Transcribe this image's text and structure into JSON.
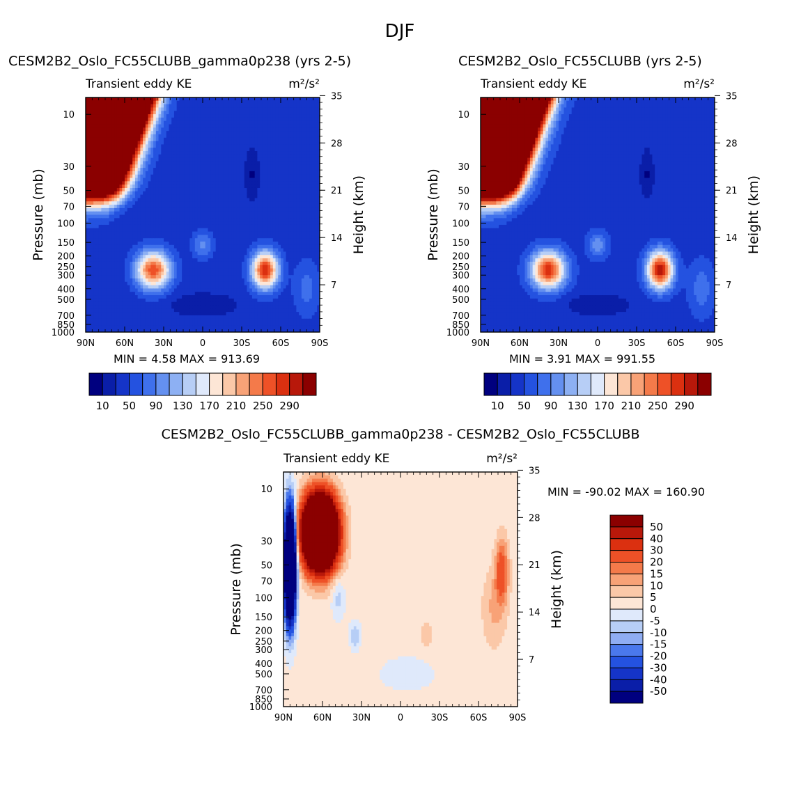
{
  "figure_title": "DJF",
  "chart_data": [
    {
      "type": "heatmap",
      "title": "CESM2B2_Oslo_FC55CLUBB_gamma0p238 (yrs 2-5)",
      "subtitle_left": "Transient eddy KE",
      "units_label": "m²/s²",
      "ylabel": "Pressure (mb)",
      "ylabel_right": "Height (km)",
      "x_ticks": [
        "90N",
        "60N",
        "30N",
        "0",
        "30S",
        "60S",
        "90S"
      ],
      "y_ticks": [
        "10",
        "30",
        "50",
        "70",
        "100",
        "150",
        "200",
        "250",
        "300",
        "400",
        "500",
        "700",
        "850",
        "1000"
      ],
      "y_right_ticks": [
        "35",
        "28",
        "21",
        "14",
        "7"
      ],
      "min_label": "MIN =",
      "min_value": "4.58",
      "max_label": "MAX =",
      "max_value": "913.69",
      "colorbar_labels": [
        "10",
        "50",
        "90",
        "130",
        "170",
        "210",
        "250",
        "290"
      ],
      "field": "control",
      "scale": 1.0
    },
    {
      "type": "heatmap",
      "title": "CESM2B2_Oslo_FC55CLUBB (yrs 2-5)",
      "subtitle_left": "Transient eddy KE",
      "units_label": "m²/s²",
      "ylabel": "Pressure (mb)",
      "ylabel_right": "Height (km)",
      "x_ticks": [
        "90N",
        "60N",
        "30N",
        "0",
        "30S",
        "60S",
        "90S"
      ],
      "y_ticks": [
        "10",
        "30",
        "50",
        "70",
        "100",
        "150",
        "200",
        "250",
        "300",
        "400",
        "500",
        "700",
        "850",
        "1000"
      ],
      "y_right_ticks": [
        "35",
        "28",
        "21",
        "14",
        "7"
      ],
      "min_label": "MIN =",
      "min_value": "3.91",
      "max_label": "MAX =",
      "max_value": "991.55",
      "colorbar_labels": [
        "10",
        "50",
        "90",
        "130",
        "170",
        "210",
        "250",
        "290"
      ],
      "field": "control",
      "scale": 1.05
    },
    {
      "type": "heatmap",
      "title": "CESM2B2_Oslo_FC55CLUBB_gamma0p238 - CESM2B2_Oslo_FC55CLUBB",
      "subtitle_left": "Transient eddy KE",
      "units_label": "m²/s²",
      "ylabel": "Pressure (mb)",
      "ylabel_right": "Height (km)",
      "x_ticks": [
        "90N",
        "60N",
        "30N",
        "0",
        "30S",
        "60S",
        "90S"
      ],
      "y_ticks": [
        "10",
        "30",
        "50",
        "70",
        "100",
        "150",
        "200",
        "250",
        "300",
        "400",
        "500",
        "700",
        "850",
        "1000"
      ],
      "y_right_ticks": [
        "35",
        "28",
        "21",
        "14",
        "7"
      ],
      "min_label": "MIN =",
      "min_value": "-90.02",
      "max_label": "MAX =",
      "max_value": "160.90",
      "colorbar_labels": [
        "50",
        "40",
        "30",
        "20",
        "15",
        "10",
        "5",
        "0",
        "-5",
        "-10",
        "-15",
        "-20",
        "-30",
        "-40",
        "-50"
      ],
      "field": "difference",
      "scale": 1.0
    }
  ],
  "colorscales": {
    "control_colors": [
      "#00007f",
      "#0a1ea8",
      "#1534c8",
      "#2452e0",
      "#3f70ec",
      "#6490f0",
      "#8db0f3",
      "#b7cef6",
      "#dfe9fb",
      "#fde6d6",
      "#fbc8a8",
      "#f8a277",
      "#f47a4a",
      "#ee5127",
      "#db3010",
      "#b8180a",
      "#8b0000"
    ],
    "control_levels": [
      10,
      30,
      50,
      70,
      90,
      110,
      130,
      150,
      170,
      190,
      210,
      230,
      250,
      270,
      290,
      310
    ],
    "diff_colors": [
      "#00007f",
      "#0a1ea8",
      "#1534c8",
      "#2452e0",
      "#4a78ec",
      "#8fadf3",
      "#b7cef6",
      "#dfe9fb",
      "#fde6d6",
      "#fbc8a8",
      "#f8a277",
      "#f47a4a",
      "#ee5127",
      "#db3010",
      "#b8180a",
      "#8b0000"
    ],
    "diff_levels": [
      -50,
      -40,
      -30,
      -20,
      -15,
      -10,
      -5,
      0,
      5,
      10,
      15,
      20,
      30,
      40,
      50
    ]
  }
}
